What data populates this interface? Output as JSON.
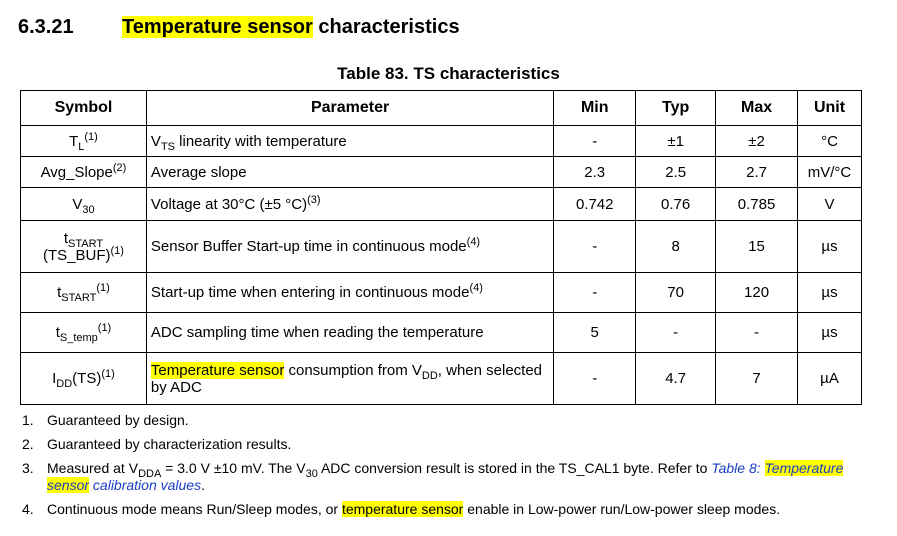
{
  "section": {
    "number": "6.3.21",
    "title_highlighted": "Temperature sensor",
    "title_rest": " characteristics"
  },
  "table": {
    "caption": "Table 83. TS characteristics",
    "headers": [
      "Symbol",
      "Parameter",
      "Min",
      "Typ",
      "Max",
      "Unit"
    ],
    "rows": [
      {
        "symbol": "T",
        "symbol_sub": "L",
        "symbol_sup": "(1)",
        "param": "V",
        "param_sub": "TS",
        "param_rest": " linearity with temperature",
        "min": "-",
        "typ": "±1",
        "max": "±2",
        "unit": "°C"
      },
      {
        "symbol": "Avg_Slope",
        "symbol_sup": "(2)",
        "param": "Average slope",
        "min": "2.3",
        "typ": "2.5",
        "max": "2.7",
        "unit": "mV/°C"
      },
      {
        "symbol": "V",
        "symbol_sub": "30",
        "param": "Voltage at 30°C (±5 °C)",
        "param_sup": "(3)",
        "min": "0.742",
        "typ": "0.76",
        "max": "0.785",
        "unit": "V"
      },
      {
        "symbol": "t",
        "symbol_sub": "START",
        "symbol_line2": "(TS_BUF)",
        "symbol_sup": "(1)",
        "param": "Sensor Buffer Start-up time in continuous mode",
        "param_sup": "(4)",
        "min": "-",
        "typ": "8",
        "max": "15",
        "unit": "µs"
      },
      {
        "symbol": "t",
        "symbol_sub": "START",
        "symbol_sup": "(1)",
        "param": "Start-up time when entering in continuous mode",
        "param_sup": "(4)",
        "min": "-",
        "typ": "70",
        "max": "120",
        "unit": "µs"
      },
      {
        "symbol": "t",
        "symbol_sub": "S_temp",
        "symbol_sup": "(1)",
        "param": "ADC sampling time when reading the temperature",
        "min": "5",
        "typ": "-",
        "max": "-",
        "unit": "µs"
      },
      {
        "symbol": "I",
        "symbol_sub": "DD",
        "symbol_rest": "(TS)",
        "symbol_sup": "(1)",
        "param_highlighted": "Temperature sensor",
        "param": " consumption from V",
        "param_sub": "DD",
        "param_rest": ", when selected by ADC",
        "min": "-",
        "typ": "4.7",
        "max": "7",
        "unit": "µA"
      }
    ]
  },
  "notes": [
    {
      "num": "1.",
      "text": "Guaranteed by design."
    },
    {
      "num": "2.",
      "text": "Guaranteed by characterization results."
    },
    {
      "num": "3.",
      "text_a": "Measured at V",
      "sub_a": "DDA",
      "text_b": " = 3.0 V ±10 mV. The V",
      "sub_b": "30",
      "text_c": " ADC conversion result is stored in the TS_CAL1 byte. Refer to ",
      "link_a": "Table 8: ",
      "link_highlighted": "Temperature sensor",
      "link_b": " calibration values",
      "text_d": "."
    },
    {
      "num": "4.",
      "text_a": "Continuous mode means Run/Sleep modes, or ",
      "highlighted": "temperature sensor",
      "text_b": " enable in Low-power run/Low-power sleep modes."
    }
  ]
}
